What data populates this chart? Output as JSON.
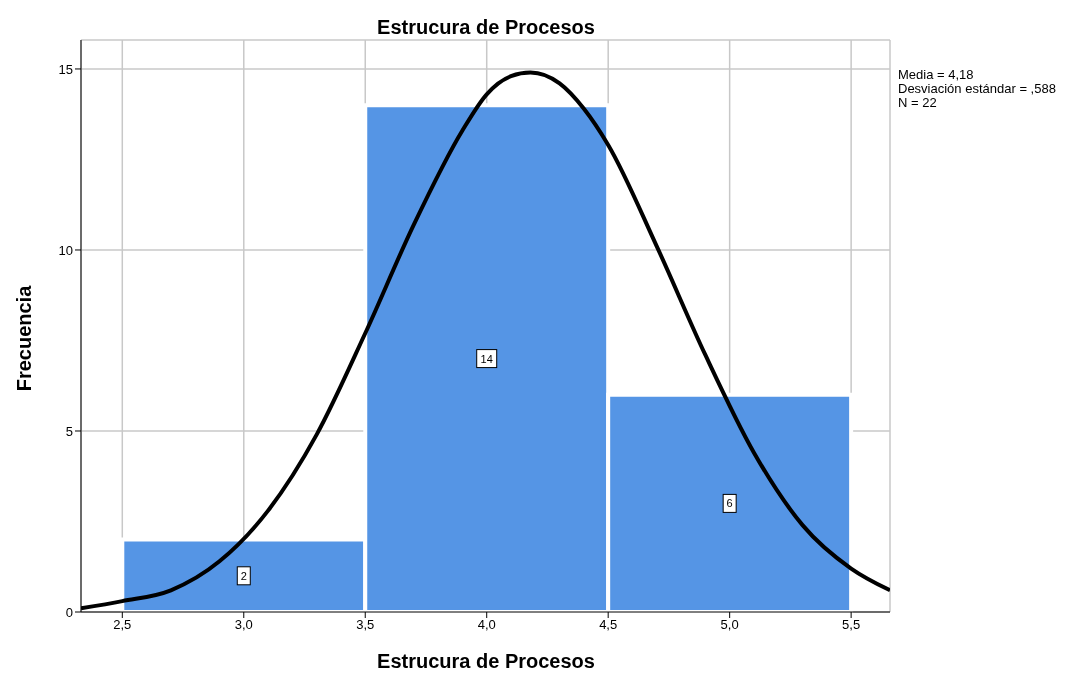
{
  "chart_data": {
    "type": "histogram",
    "title": "Estrucura de Procesos",
    "xlabel": "Estrucura de Procesos",
    "ylabel": "Frecuencia",
    "annotations": [
      "Media = 4,18",
      "Desviación estándar = ,588",
      "N = 22"
    ],
    "bins": [
      2.5,
      3.5,
      4.5,
      5.5
    ],
    "values": [
      2,
      14,
      6
    ],
    "color": "#5595e5",
    "value_labels": [
      "2",
      "14",
      "6"
    ],
    "series": [
      {
        "type": "line",
        "color": "#000000",
        "x": [
          2.33,
          2.5,
          2.7,
          2.9,
          3.1,
          3.3,
          3.5,
          3.7,
          3.9,
          4.0,
          4.1,
          4.18,
          4.3,
          4.4,
          4.5,
          4.7,
          4.9,
          5.1,
          5.3,
          5.5,
          5.66
        ],
        "values": [
          0.1,
          0.3,
          0.6,
          1.4,
          2.8,
          4.9,
          7.7,
          10.7,
          13.3,
          14.3,
          14.8,
          14.9,
          14.6,
          13.9,
          12.9,
          10.1,
          7.1,
          4.4,
          2.4,
          1.2,
          0.6
        ]
      }
    ],
    "xlim": [
      2.33,
      5.66
    ],
    "xticks": [
      {
        "value": 2.5,
        "label": "2,5"
      },
      {
        "value": 3.0,
        "label": "3,0"
      },
      {
        "value": 3.5,
        "label": "3,5"
      },
      {
        "value": 4.0,
        "label": "4,0"
      },
      {
        "value": 4.5,
        "label": "4,5"
      },
      {
        "value": 5.0,
        "label": "5,0"
      },
      {
        "value": 5.5,
        "label": "5,5"
      }
    ],
    "ylim": [
      0,
      15.8
    ],
    "yticks": [
      0,
      5,
      10,
      15
    ],
    "grid": true
  }
}
